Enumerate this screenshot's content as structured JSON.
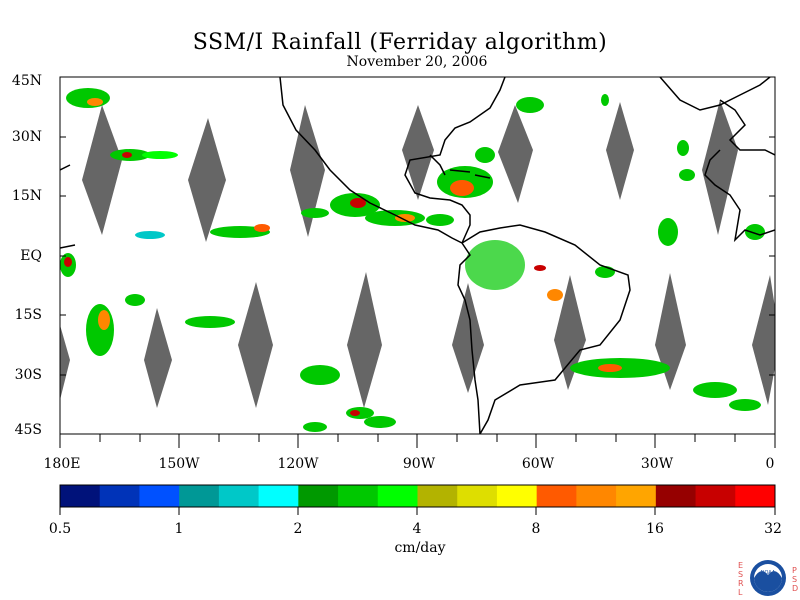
{
  "title": "SSM/I Rainfall (Ferriday algorithm)",
  "date": "November 20, 2006",
  "lat_labels": [
    "45N",
    "30N",
    "15N",
    "EQ",
    "15S",
    "30S",
    "45S"
  ],
  "lon_labels": [
    "180E",
    "150W",
    "120W",
    "90W",
    "60W",
    "30W",
    "0"
  ],
  "colorbar": {
    "colors": [
      "#00127a",
      "#0033b8",
      "#0051ff",
      "#009896",
      "#00c8c8",
      "#00ffff",
      "#009900",
      "#00c800",
      "#00ff00",
      "#b3b300",
      "#dede00",
      "#ffff00",
      "#ff5a00",
      "#ff8700",
      "#ffa500",
      "#960000",
      "#c80000",
      "#ff0000"
    ],
    "ticks": [
      "0.5",
      "1",
      "2",
      "4",
      "8",
      "16",
      "32"
    ],
    "unit": "cm/day"
  },
  "logo": {
    "left_text": "ESRL",
    "right_text": "PSD",
    "name": "noaa-logo"
  },
  "colors": {
    "land_outline": "#000000",
    "gap": "#666666",
    "background": "#ffffff"
  }
}
